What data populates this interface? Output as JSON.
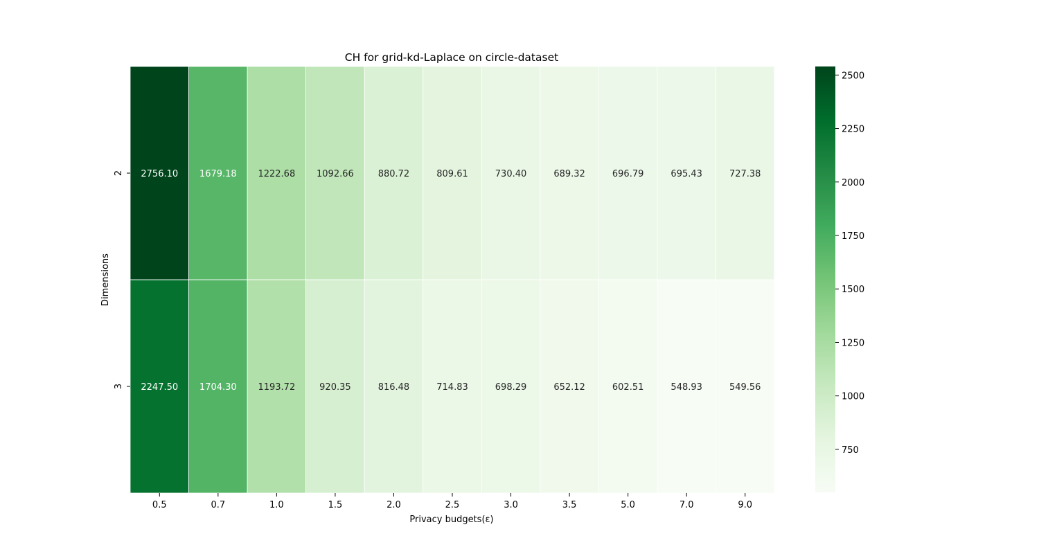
{
  "chart_data": {
    "type": "heatmap",
    "title": "CH for grid-kd-Laplace on circle-dataset",
    "xlabel": "Privacy budgets(ε)",
    "ylabel": "Dimensions",
    "x_categories": [
      "0.5",
      "0.7",
      "1.0",
      "1.5",
      "2.0",
      "2.5",
      "3.0",
      "3.5",
      "5.0",
      "7.0",
      "9.0"
    ],
    "y_categories": [
      "2",
      "3"
    ],
    "values": [
      [
        2756.1,
        1679.18,
        1222.68,
        1092.66,
        880.72,
        809.61,
        730.4,
        689.32,
        696.79,
        695.43,
        727.38
      ],
      [
        2247.5,
        1704.3,
        1193.72,
        920.35,
        816.48,
        714.83,
        698.29,
        652.12,
        602.51,
        548.93,
        549.56
      ]
    ],
    "value_format": "2 decimals",
    "colormap": "Greens",
    "color_range": [
      548.93,
      2540
    ],
    "colorbar_ticks": [
      750,
      1000,
      1250,
      1500,
      1750,
      2000,
      2250,
      2500
    ],
    "colors": {
      "low": "#f7fcf5",
      "high": "#00441b",
      "text_dark": "#262626",
      "text_light": "#ffffff"
    }
  }
}
